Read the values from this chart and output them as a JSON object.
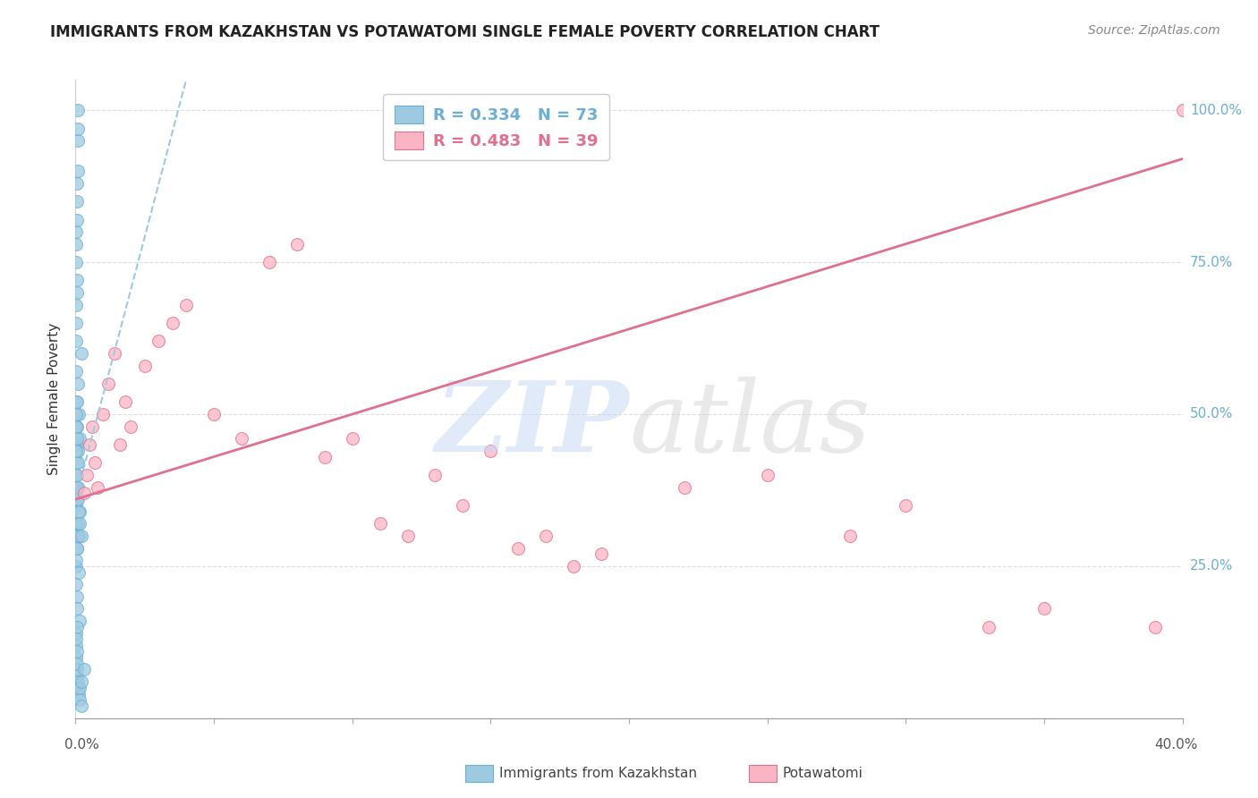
{
  "title": "IMMIGRANTS FROM KAZAKHSTAN VS POTAWATOMI SINGLE FEMALE POVERTY CORRELATION CHART",
  "source": "Source: ZipAtlas.com",
  "ylabel": "Single Female Poverty",
  "xmin": 0.0,
  "xmax": 0.4,
  "ymin": 0.0,
  "ymax": 1.05,
  "blue_color": "#9ecae1",
  "blue_edge": "#6baed6",
  "pink_color": "#fbb4c3",
  "pink_edge": "#e07090",
  "blue_line_color": "#9ecae1",
  "pink_line_color": "#e07090",
  "blue_scatter_x": [
    0.0002,
    0.0003,
    0.0004,
    0.0005,
    0.0006,
    0.0008,
    0.001,
    0.0012,
    0.0015,
    0.002,
    0.0001,
    0.0002,
    0.0003,
    0.0004,
    0.0005,
    0.0006,
    0.0008,
    0.001,
    0.0012,
    0.0015,
    0.0001,
    0.0002,
    0.0003,
    0.0004,
    0.0005,
    0.0006,
    0.0008,
    0.001,
    0.0012,
    0.0015,
    0.0001,
    0.0002,
    0.0003,
    0.0004,
    0.0005,
    0.0003,
    0.0004,
    0.0005,
    0.0006,
    0.0008,
    0.001,
    0.0012,
    0.0015,
    0.002,
    0.0001,
    0.0002,
    0.0003,
    0.0004,
    0.0005,
    0.0006,
    0.0008,
    0.001,
    0.0012,
    0.0015,
    0.002,
    0.0001,
    0.0002,
    0.0003,
    0.0004,
    0.0005,
    0.0001,
    0.0002,
    0.0003,
    0.0004,
    0.0005,
    0.0006,
    0.0007,
    0.0008,
    0.0009,
    0.001,
    0.0015,
    0.002,
    0.003
  ],
  "blue_scatter_y": [
    0.57,
    0.52,
    0.48,
    0.45,
    0.42,
    0.38,
    0.55,
    0.5,
    0.46,
    0.6,
    0.35,
    0.38,
    0.4,
    0.36,
    0.32,
    0.28,
    0.42,
    0.44,
    0.3,
    0.34,
    0.22,
    0.25,
    0.26,
    0.28,
    0.2,
    0.18,
    0.3,
    0.32,
    0.24,
    0.16,
    0.14,
    0.12,
    0.1,
    0.15,
    0.08,
    0.13,
    0.11,
    0.09,
    0.07,
    0.06,
    0.05,
    0.04,
    0.03,
    0.02,
    0.48,
    0.44,
    0.5,
    0.52,
    0.46,
    0.4,
    0.38,
    0.36,
    0.34,
    0.32,
    0.3,
    0.62,
    0.65,
    0.68,
    0.7,
    0.72,
    0.75,
    0.78,
    0.8,
    0.82,
    0.85,
    0.88,
    0.9,
    0.95,
    1.0,
    0.97,
    0.05,
    0.06,
    0.08
  ],
  "pink_scatter_x": [
    0.003,
    0.004,
    0.005,
    0.006,
    0.007,
    0.008,
    0.01,
    0.012,
    0.014,
    0.016,
    0.018,
    0.02,
    0.025,
    0.03,
    0.035,
    0.04,
    0.05,
    0.06,
    0.07,
    0.08,
    0.09,
    0.1,
    0.11,
    0.12,
    0.13,
    0.14,
    0.15,
    0.16,
    0.17,
    0.18,
    0.19,
    0.22,
    0.25,
    0.28,
    0.3,
    0.33,
    0.35,
    0.39,
    0.4
  ],
  "pink_scatter_y": [
    0.37,
    0.4,
    0.45,
    0.48,
    0.42,
    0.38,
    0.5,
    0.55,
    0.6,
    0.45,
    0.52,
    0.48,
    0.58,
    0.62,
    0.65,
    0.68,
    0.5,
    0.46,
    0.75,
    0.78,
    0.43,
    0.46,
    0.32,
    0.3,
    0.4,
    0.35,
    0.44,
    0.28,
    0.3,
    0.25,
    0.27,
    0.38,
    0.4,
    0.3,
    0.35,
    0.15,
    0.18,
    0.15,
    1.0
  ],
  "blue_line_x": [
    0.0,
    0.04
  ],
  "blue_line_y": [
    0.36,
    1.05
  ],
  "pink_line_x": [
    0.0,
    0.4
  ],
  "pink_line_y": [
    0.36,
    0.92
  ],
  "grid_color": "#dddddd",
  "background_color": "#ffffff",
  "right_ytick_vals": [
    0.25,
    0.5,
    0.75,
    1.0
  ],
  "right_ytick_labels": [
    "25.0%",
    "50.0%",
    "75.0%",
    "100.0%"
  ],
  "xtick_vals": [
    0.0,
    0.05,
    0.1,
    0.15,
    0.2,
    0.25,
    0.3,
    0.35,
    0.4
  ]
}
